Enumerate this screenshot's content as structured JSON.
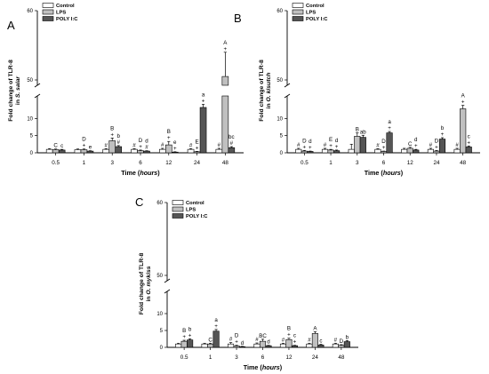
{
  "colors": {
    "control": "#ffffff",
    "lps": "#c0c0c0",
    "polyic": "#555555",
    "outline": "#000000"
  },
  "chart_data": [
    {
      "type": "bar",
      "panel_label": "A",
      "categories": [
        "0.5",
        "1",
        "3",
        "6",
        "12",
        "24",
        "48"
      ],
      "ylabel_line1": "Fold change of TLR-8",
      "ylabel_prefix": "in ",
      "ylabel_species": "S. salar",
      "xlabel_prefix": "Time (",
      "xlabel_unit": "hours",
      "xlabel_suffix": ")",
      "ylim_lower": [
        0,
        15
      ],
      "ylim_upper": [
        50,
        60
      ],
      "yticks_lower": [
        "0",
        "5",
        "10"
      ],
      "yticks_upper": [
        "50",
        "60"
      ],
      "axis_break": true,
      "legend_placement": "top-left",
      "series": [
        {
          "name": "Control",
          "values": [
            1.0,
            0.9,
            1.0,
            1.0,
            1.0,
            1.0,
            1.0
          ],
          "errors": [
            0.2,
            0.2,
            0.2,
            0.2,
            0.3,
            0.2,
            0.3
          ],
          "annotations": [
            [],
            [],
            [
              "#"
            ],
            [
              "#"
            ],
            [
              "#"
            ],
            [
              "#"
            ],
            [
              "#"
            ]
          ]
        },
        {
          "name": "LPS",
          "values": [
            0.9,
            0.9,
            3.5,
            0.6,
            2.3,
            0.3,
            50.5
          ],
          "errors": [
            0.2,
            0.2,
            0.8,
            0.2,
            1.0,
            0.1,
            3.5
          ],
          "annotations": [
            [
              "C"
            ],
            [
              "D",
              "+"
            ],
            [
              "B",
              "+"
            ],
            [
              "D",
              "+"
            ],
            [
              "B",
              "+"
            ],
            [
              "E",
              "+"
            ],
            [
              "A",
              "+"
            ]
          ]
        },
        {
          "name": "POLY I:C",
          "values": [
            0.8,
            0.5,
            1.8,
            0.5,
            0.2,
            13.2,
            1.5
          ],
          "errors": [
            0.2,
            0.1,
            0.3,
            0.1,
            0.1,
            0.9,
            0.3
          ],
          "annotations": [
            [
              "c"
            ],
            [
              "e"
            ],
            [
              "b",
              "#"
            ],
            [
              "d",
              "#"
            ],
            [
              "e",
              "+"
            ],
            [
              "a",
              "+"
            ],
            [
              "bc",
              "#"
            ]
          ]
        }
      ]
    },
    {
      "type": "bar",
      "panel_label": "B",
      "categories": [
        "0.5",
        "1",
        "3",
        "6",
        "12",
        "24",
        "48"
      ],
      "ylabel_line1": "Fold change of TLR-8",
      "ylabel_prefix": "in ",
      "ylabel_species": "O. kisutch",
      "xlabel_prefix": "Time (",
      "xlabel_unit": "hours",
      "xlabel_suffix": ")",
      "ylim_lower": [
        0,
        15
      ],
      "ylim_upper": [
        50,
        60
      ],
      "yticks_lower": [
        "0",
        "5",
        "10"
      ],
      "yticks_upper": [
        "50",
        "60"
      ],
      "axis_break": true,
      "legend_placement": "top-left",
      "series": [
        {
          "name": "Control",
          "values": [
            1.0,
            1.0,
            1.0,
            1.0,
            1.0,
            1.0,
            1.0
          ],
          "errors": [
            0.3,
            0.3,
            1.5,
            0.2,
            0.3,
            0.3,
            0.3
          ],
          "annotations": [
            [
              "#"
            ],
            [
              "#"
            ],
            [],
            [
              "#"
            ],
            [],
            [
              "#"
            ],
            [
              "#"
            ]
          ]
        },
        {
          "name": "LPS",
          "values": [
            0.5,
            0.8,
            4.8,
            0.4,
            1.3,
            0.5,
            12.8
          ],
          "errors": [
            0.2,
            0.2,
            1.0,
            0.1,
            0.3,
            0.2,
            1.0
          ],
          "annotations": [
            [
              "D",
              "+"
            ],
            [
              "E",
              "+"
            ],
            [
              "B"
            ],
            [
              "D",
              "+"
            ],
            [
              "C"
            ],
            [
              "D",
              "+"
            ],
            [
              "A",
              "+"
            ]
          ]
        },
        {
          "name": "POLY I:C",
          "values": [
            0.4,
            0.6,
            4.5,
            5.8,
            0.8,
            4.0,
            1.7
          ],
          "errors": [
            0.1,
            0.2,
            0.6,
            0.4,
            0.2,
            0.4,
            0.3
          ],
          "annotations": [
            [
              "d",
              "+"
            ],
            [
              "d",
              "+"
            ],
            [
              "ab"
            ],
            [
              "a",
              "+"
            ],
            [
              "d",
              "+"
            ],
            [
              "b",
              "+"
            ],
            [
              "c",
              "+"
            ]
          ]
        }
      ]
    },
    {
      "type": "bar",
      "panel_label": "C",
      "categories": [
        "0.5",
        "1",
        "3",
        "6",
        "12",
        "24",
        "48"
      ],
      "ylabel_line1": "Fold change of TLR-8",
      "ylabel_prefix": "in ",
      "ylabel_species": "O. mykiss",
      "xlabel_prefix": "Time (",
      "xlabel_unit": "hours",
      "xlabel_suffix": ")",
      "ylim_lower": [
        0,
        15
      ],
      "ylim_upper": [
        50,
        60
      ],
      "yticks_lower": [
        "0",
        "5",
        "10"
      ],
      "yticks_upper": [
        "50",
        "60"
      ],
      "axis_break": true,
      "legend_placement": "top-left",
      "series": [
        {
          "name": "Control",
          "values": [
            1.0,
            1.0,
            1.0,
            1.0,
            1.0,
            1.0,
            1.0
          ],
          "errors": [
            0.2,
            0.2,
            0.4,
            0.3,
            0.2,
            0.2,
            0.2
          ],
          "annotations": [
            [],
            [],
            [
              "#"
            ],
            [
              "#"
            ],
            [
              "#"
            ],
            [
              "#"
            ],
            [
              "#"
            ]
          ]
        },
        {
          "name": "LPS",
          "values": [
            1.8,
            1.0,
            0.4,
            1.8,
            2.3,
            4.1,
            0.6
          ],
          "errors": [
            0.3,
            0.2,
            0.2,
            0.6,
            0.4,
            0.5,
            0.2
          ],
          "annotations": [
            [
              "B",
              "+"
            ],
            [
              "C"
            ],
            [
              "D",
              "+"
            ],
            [
              "BC"
            ],
            [
              "B",
              "+"
            ],
            [
              "A"
            ],
            [
              "D"
            ]
          ]
        },
        {
          "name": "POLY I:C",
          "values": [
            2.2,
            4.8,
            0.2,
            0.5,
            0.5,
            0.7,
            1.7
          ],
          "errors": [
            0.3,
            0.5,
            0.1,
            0.1,
            0.1,
            0.2,
            0.3
          ],
          "annotations": [
            [
              "b",
              "+"
            ],
            [
              "a",
              "+"
            ],
            [
              "d"
            ],
            [
              "d"
            ],
            [
              "c",
              "+"
            ],
            [
              "c"
            ],
            [
              "b"
            ]
          ]
        }
      ]
    }
  ]
}
